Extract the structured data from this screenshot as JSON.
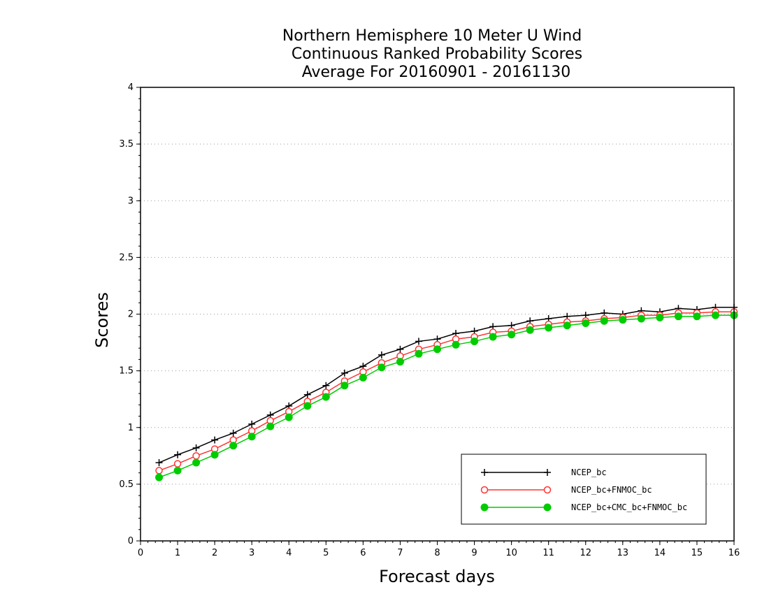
{
  "chart_data": {
    "type": "line",
    "title": [
      "Northern Hemisphere 10 Meter U Wind",
      "Continuous Ranked Probability Scores",
      "Average For 20160901 - 20161130"
    ],
    "xlabel": "Forecast days",
    "ylabel": "Scores",
    "xlim": [
      0,
      16
    ],
    "ylim": [
      0,
      4
    ],
    "xticks": [
      0,
      1,
      2,
      3,
      4,
      5,
      6,
      7,
      8,
      9,
      10,
      11,
      12,
      13,
      14,
      15,
      16
    ],
    "yticks": [
      0,
      0.5,
      1,
      1.5,
      2,
      2.5,
      3,
      3.5,
      4
    ],
    "ytick_labels": [
      "0",
      "0.5",
      "1",
      "1.5",
      "2",
      "2.5",
      "3",
      "3.5",
      "4"
    ],
    "grid": "horizontal dotted",
    "legend_position": "bottom-right",
    "x": [
      0.5,
      1,
      1.5,
      2,
      2.5,
      3,
      3.5,
      4,
      4.5,
      5,
      5.5,
      6,
      6.5,
      7,
      7.5,
      8,
      8.5,
      9,
      9.5,
      10,
      10.5,
      11,
      11.5,
      12,
      12.5,
      13,
      13.5,
      14,
      14.5,
      15,
      15.5,
      16
    ],
    "series": [
      {
        "name": "NCEP_bc",
        "color": "#000000",
        "marker": "plus",
        "values": [
          0.69,
          0.76,
          0.82,
          0.89,
          0.95,
          1.03,
          1.11,
          1.19,
          1.29,
          1.37,
          1.48,
          1.54,
          1.64,
          1.69,
          1.76,
          1.78,
          1.83,
          1.85,
          1.89,
          1.9,
          1.94,
          1.96,
          1.98,
          1.99,
          2.01,
          2.0,
          2.03,
          2.02,
          2.05,
          2.04,
          2.06,
          2.06
        ]
      },
      {
        "name": "NCEP_bc+FNMOC_bc",
        "color": "#ff3333",
        "marker": "open-circle",
        "values": [
          0.62,
          0.68,
          0.75,
          0.81,
          0.89,
          0.97,
          1.06,
          1.14,
          1.23,
          1.31,
          1.41,
          1.49,
          1.57,
          1.63,
          1.69,
          1.73,
          1.78,
          1.8,
          1.84,
          1.85,
          1.89,
          1.91,
          1.93,
          1.94,
          1.96,
          1.97,
          1.99,
          1.99,
          2.01,
          2.01,
          2.02,
          2.02
        ]
      },
      {
        "name": "NCEP_bc+CMC_bc+FNMOC_bc",
        "color": "#00cc00",
        "marker": "filled-circle",
        "values": [
          0.56,
          0.62,
          0.69,
          0.76,
          0.84,
          0.92,
          1.01,
          1.09,
          1.19,
          1.27,
          1.37,
          1.44,
          1.53,
          1.58,
          1.65,
          1.69,
          1.73,
          1.76,
          1.8,
          1.82,
          1.86,
          1.88,
          1.9,
          1.92,
          1.94,
          1.95,
          1.96,
          1.97,
          1.98,
          1.98,
          1.99,
          1.99
        ]
      }
    ]
  }
}
